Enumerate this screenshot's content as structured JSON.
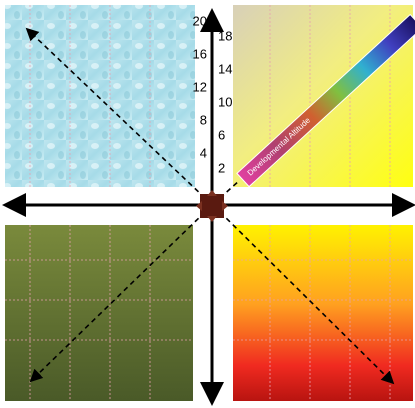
{
  "axis": {
    "left_ticks": [
      20,
      16,
      12,
      8,
      4
    ],
    "right_ticks": [
      18,
      14,
      10,
      6,
      2
    ]
  },
  "bar": {
    "label": "Developmental Altitude"
  }
}
